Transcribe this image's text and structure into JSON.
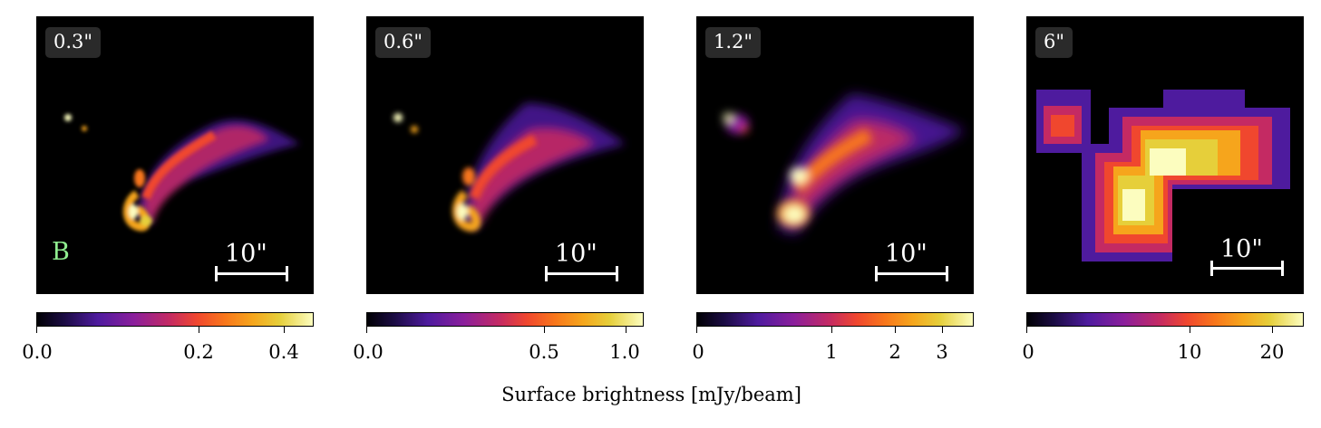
{
  "panels": [
    {
      "resolution": "0.3\"",
      "scalebar": "10\"",
      "label": "B"
    },
    {
      "resolution": "0.6\"",
      "scalebar": "10\""
    },
    {
      "resolution": "1.2\"",
      "scalebar": "10\""
    },
    {
      "resolution": "6\"",
      "scalebar": "10\""
    }
  ],
  "colorbars": [
    {
      "ticks": [
        "0.0",
        "0.2",
        "0.4"
      ]
    },
    {
      "ticks": [
        "0.0",
        "0.5",
        "1.0"
      ]
    },
    {
      "ticks": [
        "0",
        "1",
        "2",
        "3"
      ]
    },
    {
      "ticks": [
        "0",
        "10",
        "20"
      ]
    }
  ],
  "colorbar_label": "Surface brightness [mJy/beam]",
  "colormap": "CMRmap-like (black, purple, red, orange, yellow, white)"
}
